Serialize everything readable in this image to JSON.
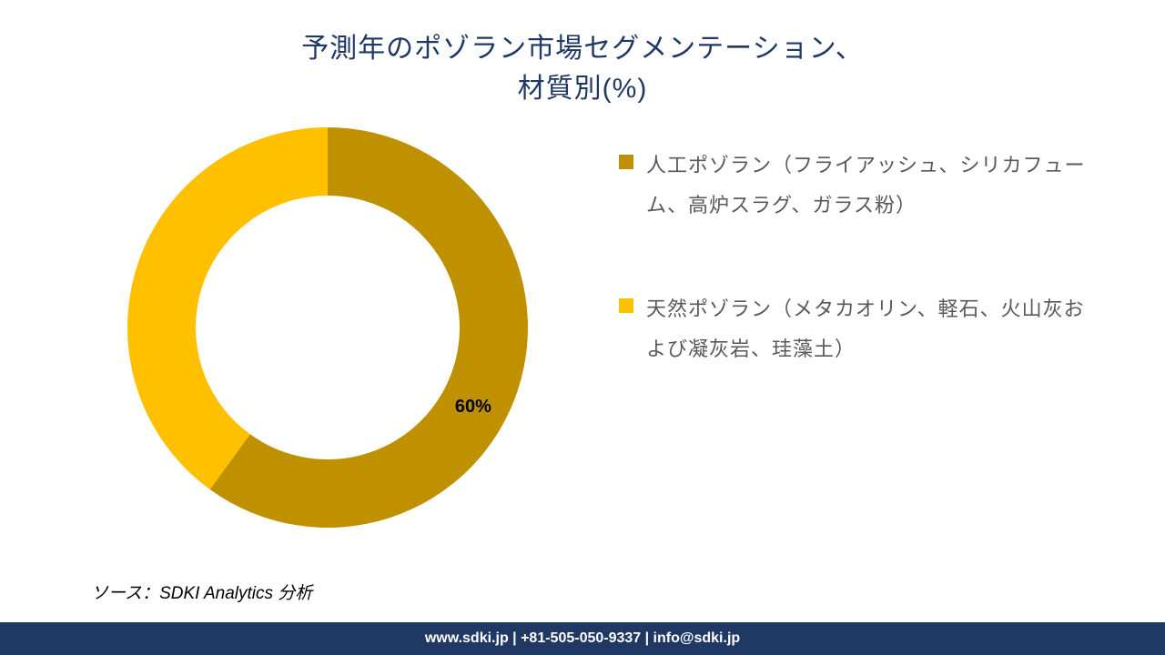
{
  "title": {
    "line1": "予測年のポゾラン市場セグメンテーション、",
    "line2": "材質別(%)",
    "color": "#203864",
    "fontsize": 30
  },
  "chart": {
    "type": "donut",
    "background_color": "#ffffff",
    "outer_radius": 220,
    "inner_radius": 145,
    "slices": [
      {
        "label_key": "legend.items.0.text",
        "value": 60,
        "color": "#bf9000",
        "show_pct": true,
        "pct_text": "60%"
      },
      {
        "label_key": "legend.items.1.text",
        "value": 40,
        "color": "#ffc000",
        "show_pct": false,
        "pct_text": ""
      }
    ],
    "pct_label_fontsize": 20,
    "pct_label_color": "#000000",
    "start_angle_deg": -90
  },
  "legend": {
    "marker_size": 16,
    "text_fontsize": 22,
    "text_color": "#595959",
    "items": [
      {
        "color": "#bf9000",
        "text": "人工ポゾラン（フライアッシュ、シリカフューム、高炉スラグ、ガラス粉）"
      },
      {
        "color": "#ffc000",
        "text": "天然ポゾラン（メタカオリン、軽石、火山灰および凝灰岩、珪藻土）"
      }
    ]
  },
  "source": {
    "prefix": "ソース：",
    "text": "SDKI Analytics 分析",
    "fontsize": 19
  },
  "footer": {
    "text": "www.sdki.jp | +81-505-050-9337 | info@sdki.jp",
    "bg_color": "#203864",
    "text_color": "#ffffff",
    "fontsize": 16
  }
}
